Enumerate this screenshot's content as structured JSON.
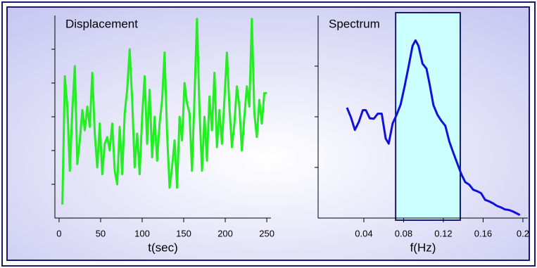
{
  "chart_data": [
    {
      "type": "line",
      "title": "Displacement",
      "x_label": "t(sec)",
      "xlim": [
        -5,
        255
      ],
      "xticks": [
        0,
        50,
        100,
        150,
        200,
        250
      ],
      "ylim": [
        0,
        6
      ],
      "yticks": [
        1,
        2,
        3,
        4,
        5
      ],
      "series": [
        {
          "color": "#22ee22",
          "x": [
            4,
            7,
            10,
            13,
            16,
            19,
            22,
            25,
            28,
            31,
            34,
            37,
            40,
            43,
            46,
            49,
            52,
            55,
            58,
            61,
            64,
            67,
            70,
            73,
            76,
            79,
            82,
            85,
            88,
            91,
            94,
            97,
            100,
            103,
            106,
            109,
            112,
            115,
            118,
            121,
            124,
            127,
            130,
            133,
            136,
            139,
            142,
            145,
            148,
            151,
            154,
            157,
            160,
            163,
            166,
            169,
            172,
            175,
            178,
            181,
            184,
            187,
            190,
            193,
            196,
            199,
            202,
            205,
            208,
            211,
            214,
            217,
            220,
            223,
            226,
            229,
            232,
            235,
            238,
            241,
            244,
            247,
            250
          ],
          "values": [
            0.4,
            4.2,
            3.3,
            1.4,
            3.2,
            4.5,
            1.6,
            2.3,
            3.2,
            2.6,
            3.3,
            2.7,
            4.3,
            2.5,
            1.5,
            2.8,
            1.3,
            2.2,
            2.4,
            2.0,
            2.8,
            1.4,
            1.0,
            2.7,
            1.3,
            3.1,
            3.8,
            5.0,
            3.5,
            1.5,
            2.5,
            1.3,
            3.0,
            4.2,
            2.2,
            3.8,
            1.8,
            3.0,
            1.7,
            2.8,
            3.5,
            4.9,
            2.5,
            0.9,
            1.5,
            2.3,
            0.9,
            3.0,
            2.3,
            4.0,
            3.4,
            3.1,
            1.4,
            3.6,
            5.9,
            3.2,
            1.4,
            3.0,
            1.7,
            3.6,
            2.6,
            4.3,
            2.1,
            3.2,
            2.2,
            3.5,
            4.9,
            3.3,
            2.1,
            2.8,
            3.9,
            3.3,
            2.0,
            3.0,
            3.9,
            3.3,
            5.9,
            3.1,
            2.4,
            3.5,
            2.8,
            3.7,
            3.7
          ]
        }
      ]
    },
    {
      "type": "line",
      "title": "Spectrum",
      "x_label": "f(Hz)",
      "xlim": [
        -0.006,
        0.205
      ],
      "xticks": [
        0.04,
        0.08,
        0.12,
        0.16,
        0.2
      ],
      "ylim": [
        0,
        4
      ],
      "yticks": [
        1,
        2,
        3
      ],
      "band": [
        0.072,
        0.137
      ],
      "band_color": "#ccffff",
      "series": [
        {
          "color": "#1010dd",
          "x": [
            0.023,
            0.027,
            0.031,
            0.035,
            0.039,
            0.042,
            0.046,
            0.05,
            0.054,
            0.058,
            0.062,
            0.065,
            0.069,
            0.073,
            0.077,
            0.081,
            0.085,
            0.089,
            0.092,
            0.095,
            0.099,
            0.103,
            0.106,
            0.11,
            0.114,
            0.118,
            0.122,
            0.126,
            0.13,
            0.134,
            0.138,
            0.142,
            0.146,
            0.15,
            0.154,
            0.158,
            0.162,
            0.166,
            0.17,
            0.174,
            0.178,
            0.182,
            0.186,
            0.19,
            0.194,
            0.197
          ],
          "values": [
            2.18,
            1.99,
            1.74,
            1.9,
            2.13,
            2.13,
            1.97,
            1.96,
            2.06,
            2.06,
            1.57,
            1.47,
            1.87,
            2.04,
            2.24,
            2.6,
            2.99,
            3.4,
            3.51,
            3.4,
            3.05,
            2.95,
            2.66,
            2.23,
            2.04,
            1.92,
            1.82,
            1.51,
            1.29,
            1.08,
            0.87,
            0.71,
            0.66,
            0.56,
            0.53,
            0.49,
            0.36,
            0.33,
            0.29,
            0.24,
            0.21,
            0.17,
            0.16,
            0.13,
            0.09,
            0.06
          ]
        }
      ]
    }
  ]
}
